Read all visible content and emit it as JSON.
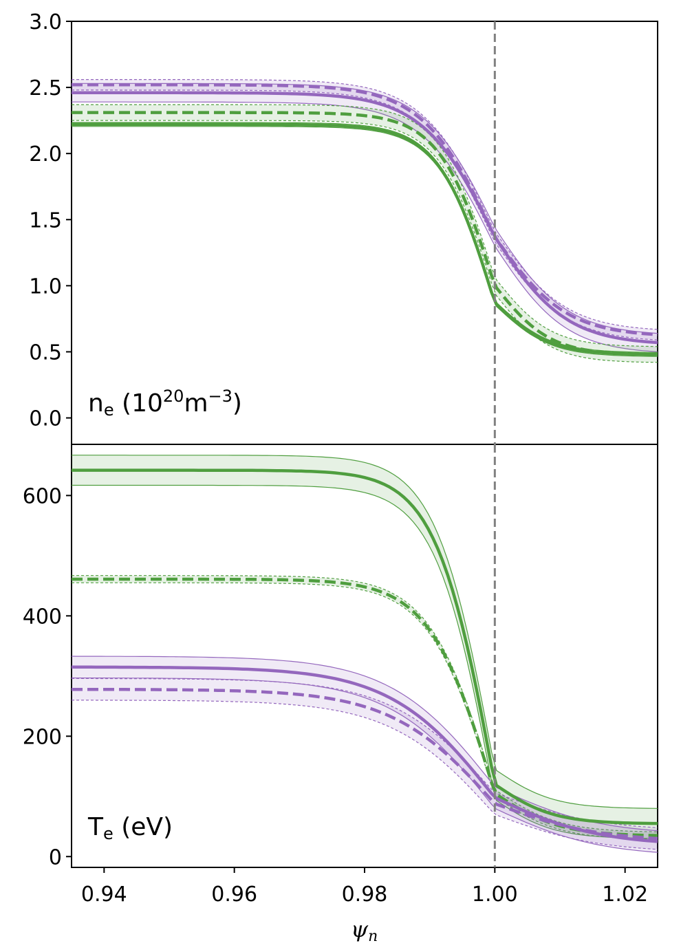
{
  "chart_data": {
    "type": "line",
    "xlabel": "ψ",
    "xlabel_sub": "n",
    "xlim": [
      0.935,
      1.025
    ],
    "xticks": [
      0.94,
      0.96,
      0.98,
      1.0,
      1.02
    ],
    "xtick_labels": [
      "0.94",
      "0.96",
      "0.98",
      "1.00",
      "1.02"
    ],
    "separatrix_x": 1.0,
    "colors": {
      "purple": "#9467bd",
      "green": "#4f9e3f",
      "separatrix": "#808080"
    },
    "panels": [
      {
        "name": "density",
        "label_main": "n",
        "label_sub": "e",
        "label_open": " (10",
        "label_exp": "20",
        "label_unit": "m",
        "label_unit_exp": "−3",
        "label_close": ")",
        "ylim": [
          -0.2,
          3.0
        ],
        "yticks": [
          0.0,
          0.5,
          1.0,
          1.5,
          2.0,
          2.5,
          3.0
        ],
        "ytick_labels": [
          "0.0",
          "0.5",
          "1.0",
          "1.5",
          "2.0",
          "2.5",
          "3.0"
        ],
        "series": [
          {
            "name": "purple-solid",
            "color": "purple",
            "style": "solid",
            "ped": 2.46,
            "sep": 1.37,
            "sol": 0.57,
            "w": 0.011,
            "band": 0.07
          },
          {
            "name": "purple-dashed",
            "color": "purple",
            "style": "dashed",
            "ped": 2.52,
            "sep": 1.37,
            "sol": 0.63,
            "w": 0.011,
            "band": 0.04
          },
          {
            "name": "green-dashed",
            "color": "green",
            "style": "dashed",
            "ped": 2.31,
            "sep": 1.0,
            "sol": 0.48,
            "w": 0.0085,
            "band": 0.06
          },
          {
            "name": "green-solid",
            "color": "green",
            "style": "solid",
            "ped": 2.22,
            "sep": 0.87,
            "sol": 0.48,
            "w": 0.0085,
            "band": 0.015
          }
        ]
      },
      {
        "name": "temperature",
        "label_main": "T",
        "label_sub": "e",
        "label_open": " (eV)",
        "ylim": [
          -18,
          685
        ],
        "yticks": [
          0,
          200,
          400,
          600
        ],
        "ytick_labels": [
          "0",
          "200",
          "400",
          "600"
        ],
        "series": [
          {
            "name": "green-solid",
            "color": "green",
            "style": "solid",
            "ped": 642,
            "sep": 120,
            "sol": 55,
            "w": 0.009,
            "band": 25
          },
          {
            "name": "green-dashed",
            "color": "green",
            "style": "dashed",
            "ped": 461,
            "sep": 105,
            "sol": 35,
            "w": 0.01,
            "band": 6
          },
          {
            "name": "purple-solid",
            "color": "purple",
            "style": "solid",
            "ped": 315,
            "sep": 98,
            "sol": 25,
            "w": 0.016,
            "band": 18
          },
          {
            "name": "purple-dashed",
            "color": "purple",
            "style": "dashed",
            "ped": 278,
            "sep": 88,
            "sol": 30,
            "w": 0.016,
            "band": 18
          }
        ]
      }
    ]
  }
}
